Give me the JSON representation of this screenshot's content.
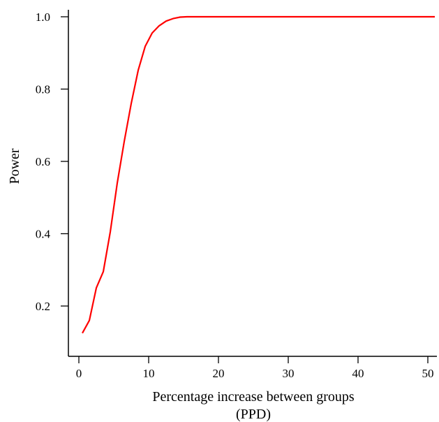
{
  "chart_data": {
    "type": "line",
    "title": "",
    "xlabel": [
      "Percentage increase between groups",
      "(PPD)"
    ],
    "ylabel": "Power",
    "xlim": [
      -1,
      51
    ],
    "ylim": [
      0.06,
      1.02
    ],
    "xticks": [
      0,
      10,
      20,
      30,
      40,
      50
    ],
    "yticks": [
      0.2,
      0.4,
      0.6,
      0.8,
      1.0
    ],
    "xtick_labels": [
      "0",
      "10",
      "20",
      "30",
      "40",
      "50"
    ],
    "ytick_labels": [
      "0.2",
      "0.4",
      "0.6",
      "0.8",
      "1.0"
    ],
    "grid": false,
    "legend": "none",
    "series": [
      {
        "color": "#ff0000",
        "x": [
          0.5,
          1.5,
          2.5,
          3.5,
          4.5,
          5.5,
          6.5,
          7.5,
          8.5,
          9.5,
          10.5,
          11.5,
          12.5,
          13.5,
          14.5,
          15.5,
          20,
          30,
          40,
          51
        ],
        "y": [
          0.125,
          0.16,
          0.25,
          0.295,
          0.405,
          0.54,
          0.655,
          0.76,
          0.852,
          0.918,
          0.955,
          0.975,
          0.988,
          0.995,
          0.999,
          1.0,
          1.0,
          1.0,
          1.0,
          1.0
        ]
      }
    ]
  }
}
